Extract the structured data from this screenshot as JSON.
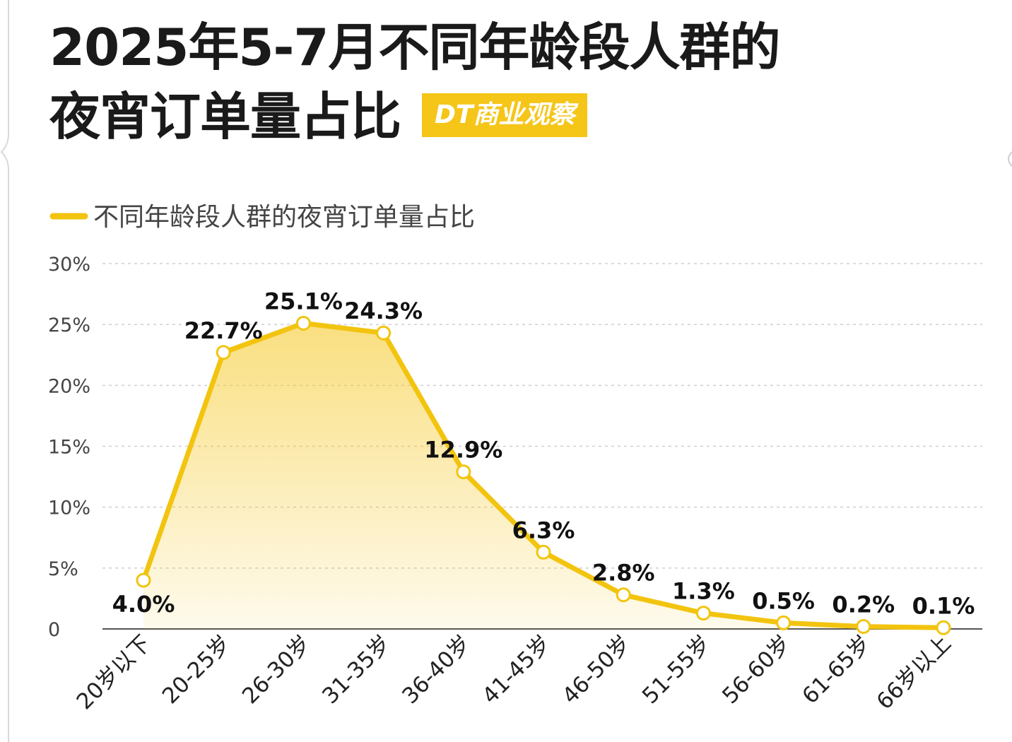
{
  "header": {
    "title_line1": "2025年5-7月不同年龄段人群的",
    "title_line2": "夜宵订单量占比",
    "brand": "DT商业观察"
  },
  "colors": {
    "accent": "#f5c518",
    "line": "#f2c40f",
    "text": "#111111"
  },
  "chart_data": {
    "type": "area",
    "title": "2025年5-7月不同年龄段人群的夜宵订单量占比",
    "categories": [
      "20岁以下",
      "20-25岁",
      "26-30岁",
      "31-35岁",
      "36-40岁",
      "41-45岁",
      "46-50岁",
      "51-55岁",
      "56-60岁",
      "61-65岁",
      "66岁以上"
    ],
    "series": [
      {
        "name": "不同年龄段人群的夜宵订单量占比",
        "values": [
          4.0,
          22.7,
          25.1,
          24.3,
          12.9,
          6.3,
          2.8,
          1.3,
          0.5,
          0.2,
          0.1
        ],
        "labels": [
          "4.0%",
          "22.7%",
          "25.1%",
          "24.3%",
          "12.9%",
          "6.3%",
          "2.8%",
          "1.3%",
          "0.5%",
          "0.2%",
          "0.1%"
        ]
      }
    ],
    "ylim": [
      0,
      30
    ],
    "yticks": [
      0,
      5,
      10,
      15,
      20,
      25,
      30
    ],
    "ytick_labels": [
      "0",
      "5%",
      "10%",
      "15%",
      "20%",
      "25%",
      "30%"
    ],
    "grid": true,
    "legend": "top-left"
  }
}
